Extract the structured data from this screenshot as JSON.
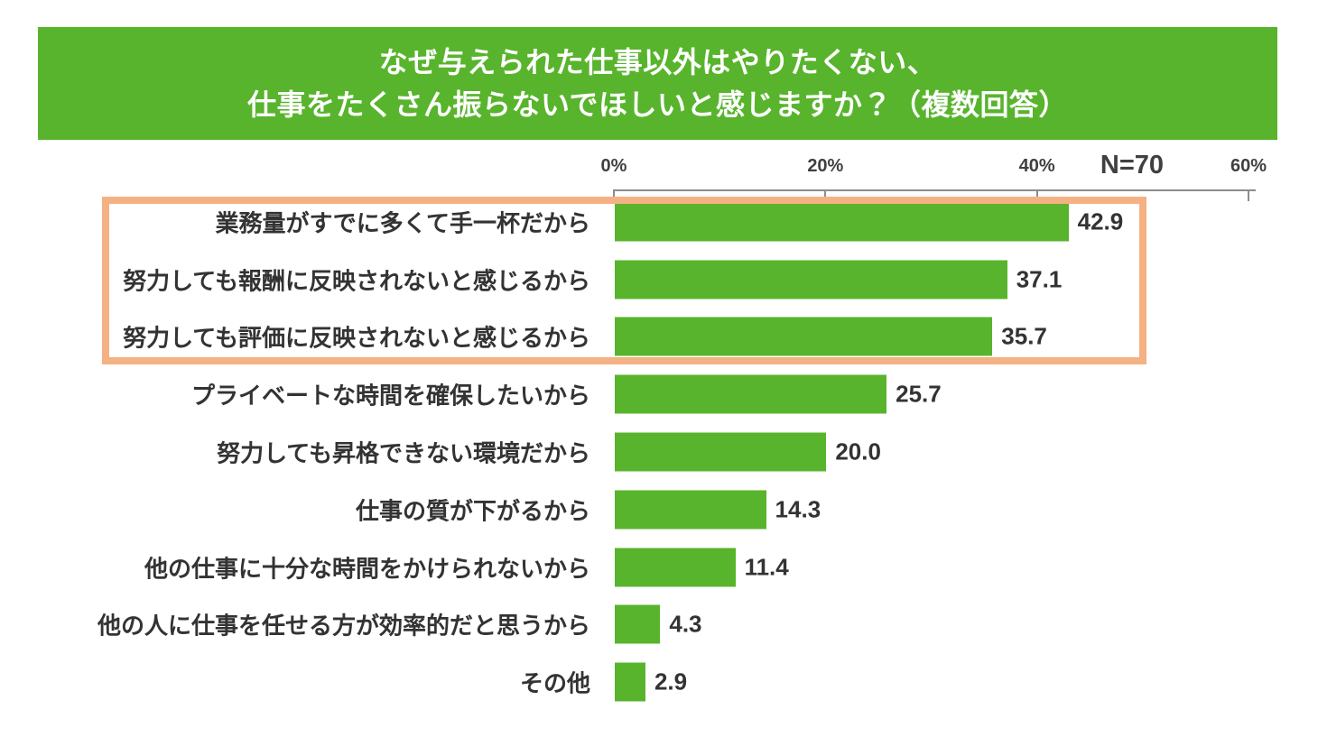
{
  "title": {
    "line1": "なぜ与えられた仕事以外はやりたくない、",
    "line2": "仕事をたくさん振らないでほしいと感じますか？（複数回答）"
  },
  "sample_label": "N=70",
  "axis": {
    "ticks": [
      "0%",
      "20%",
      "40%",
      "60%"
    ],
    "tick_values": [
      0,
      20,
      40,
      60
    ],
    "max": 60
  },
  "colors": {
    "banner_and_bar_green": "#58b42c",
    "highlight_box_orange": "#f4b183",
    "axis_gray": "#8c8c8c",
    "tick_label_gray": "#404040",
    "label_text": "#333333",
    "title_text": "#ffffff",
    "background": "#ffffff"
  },
  "chart_data": {
    "type": "bar",
    "orientation": "horizontal",
    "title": "なぜ与えられた仕事以外はやりたくない、仕事をたくさん振らないでほしいと感じますか？（複数回答）",
    "sample_size_label": "N=70",
    "sample_size": 70,
    "xlabel": "",
    "ylabel": "",
    "xlim": [
      0,
      60
    ],
    "x_tick_labels": [
      "0%",
      "20%",
      "40%",
      "60%"
    ],
    "grid": false,
    "legend": false,
    "unit": "%",
    "categories": [
      "業務量がすでに多くて手一杯だから",
      "努力しても報酬に反映されないと感じるから",
      "努力しても評価に反映されないと感じるから",
      "プライベートな時間を確保したいから",
      "努力しても昇格できない環境だから",
      "仕事の質が下がるから",
      "他の仕事に十分な時間をかけられないから",
      "他の人に仕事を任せる方が効率的だと思うから",
      "その他"
    ],
    "values": [
      42.9,
      37.1,
      35.7,
      25.7,
      20.0,
      14.3,
      11.4,
      4.3,
      2.9
    ],
    "value_labels": [
      "42.9",
      "37.1",
      "35.7",
      "25.7",
      "20.0",
      "14.3",
      "11.4",
      "4.3",
      "2.9"
    ],
    "highlighted_category_indices": [
      0,
      1,
      2
    ],
    "highlight_style": "orange-box-outline"
  }
}
